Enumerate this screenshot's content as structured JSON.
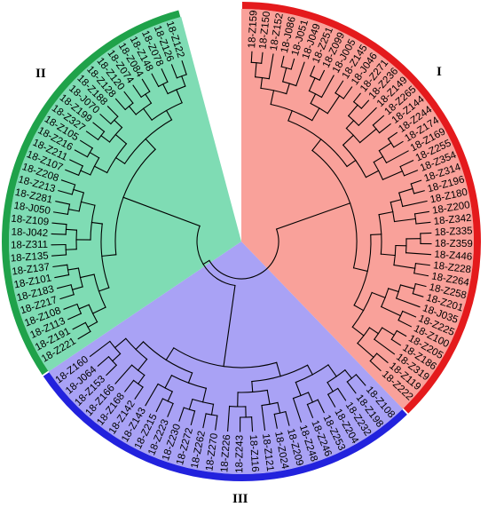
{
  "colors": {
    "clade_I_fill": "#f9a19a",
    "clade_I_ring": "#e41a1c",
    "clade_II_fill": "#7fdcb4",
    "clade_II_ring": "#1fa24a",
    "clade_III_fill": "#a9a2f5",
    "clade_III_ring": "#2222dd",
    "branch": "#000000"
  },
  "clades": [
    {
      "label": "I",
      "leaves": [
        "18-Z159",
        "18-Z150",
        "18-Z152",
        "18-J086",
        "18-J051",
        "18-J049",
        "18-Z251",
        "18-Z099",
        "18-J005",
        "18-Z145",
        "18-J046",
        "18-Z271",
        "18-Z236",
        "18-Z149",
        "18-Z265",
        "18-Z144",
        "18-Z244",
        "18-Z174",
        "18-Z169",
        "18-Z255",
        "18-Z354",
        "18-Z314",
        "18-Z196",
        "18-Z180",
        "18-Z200",
        "18-Z342",
        "18-Z335",
        "18-Z359",
        "18-Z446",
        "18-Z228",
        "18-Z264",
        "18-Z258",
        "18-Z201",
        "18-J035",
        "18-Z225",
        "18-Z100",
        "18-Z205",
        "18-Z186",
        "18-Z319",
        "18-Z119",
        "18-Z222"
      ]
    },
    {
      "label": "III",
      "leaves": [
        "18-Z108",
        "18-Z198",
        "18-Z232",
        "18-Z204",
        "18-Z253",
        "18-Z246",
        "18-Z248",
        "18-Z209",
        "18-Z024",
        "18-Z121",
        "18-Z116",
        "18-Z243",
        "18-Z226",
        "18-Z270",
        "18-Z262",
        "18-Z272",
        "18-Z230",
        "18-Z223",
        "18-Z215",
        "18-Z143",
        "18-Z142",
        "18-Z168",
        "18-Z166",
        "18-Z153",
        "18-J064",
        "18-Z160"
      ]
    },
    {
      "label": "II",
      "leaves": [
        "18-Z221",
        "18-Z191",
        "18-Z113",
        "18-Z108",
        "18-Z217",
        "18-Z183",
        "18-Z101",
        "18-Z137",
        "18-Z135",
        "18-Z311",
        "18-J042",
        "18-Z109",
        "18-J050",
        "18-Z281",
        "18-Z213",
        "18-Z208",
        "18-Z107",
        "18-Z211",
        "18-Z216",
        "18-Z105",
        "18-Z327",
        "18-Z199",
        "18-J070",
        "18-Z188",
        "18-Z128",
        "18-Z120",
        "18-Z074",
        "18-Z084",
        "18-Z148",
        "18-Z078",
        "18-Z126",
        "18-Z122"
      ]
    }
  ]
}
